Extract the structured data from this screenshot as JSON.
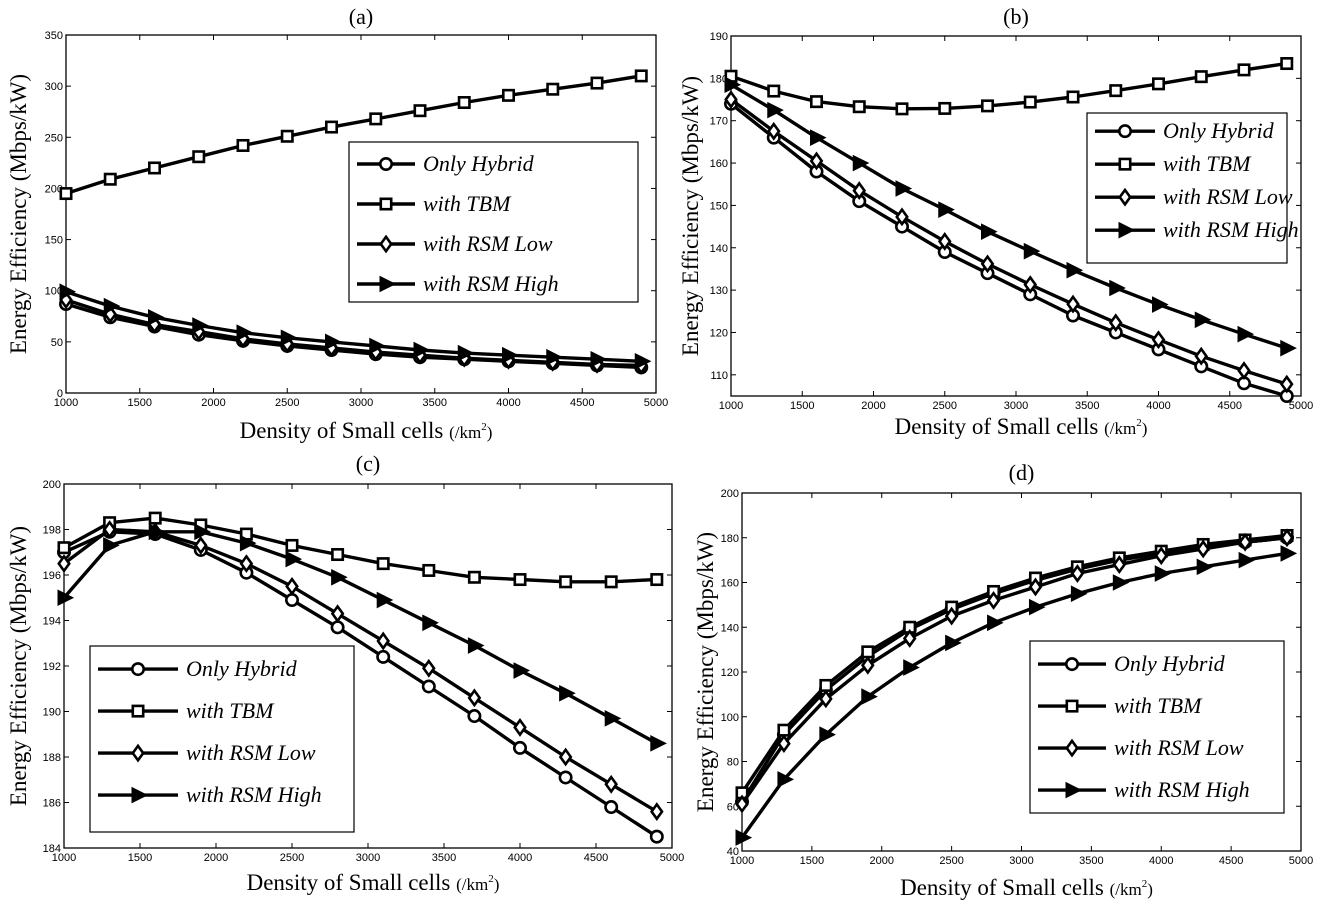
{
  "chart_data": [
    {
      "panel": "(a)",
      "type": "line",
      "xlabel": "Density of Small cells",
      "xunit": "(/km",
      "ylabel": "Energy Efficiency (Mbps/kW)",
      "xlim": [
        1000,
        5000
      ],
      "ylim": [
        0,
        350
      ],
      "xticks": [
        1000,
        1500,
        2000,
        2500,
        3000,
        3500,
        4000,
        4500,
        5000
      ],
      "yticks": [
        0,
        50,
        100,
        150,
        200,
        250,
        300,
        350
      ],
      "legend": "center-right",
      "x": [
        1000,
        1300,
        1600,
        1900,
        2200,
        2500,
        2800,
        3100,
        3400,
        3700,
        4000,
        4300,
        4600,
        4900
      ],
      "series": [
        {
          "name": "Only Hybrid",
          "marker": "circle",
          "values": [
            87,
            74,
            65,
            57,
            51,
            46,
            42,
            38,
            35,
            33,
            31,
            29,
            27,
            25
          ]
        },
        {
          "name": "with TBM",
          "marker": "square",
          "values": [
            195,
            209,
            220,
            231,
            242,
            251,
            260,
            268,
            276,
            284,
            291,
            297,
            303,
            310
          ]
        },
        {
          "name": "with RSM Low",
          "marker": "diamond",
          "values": [
            91,
            77,
            67,
            60,
            53,
            48,
            44,
            40,
            37,
            34,
            32,
            30,
            28,
            27
          ]
        },
        {
          "name": "with RSM High",
          "marker": "triangle-right",
          "values": [
            99,
            85,
            74,
            66,
            59,
            54,
            50,
            46,
            42,
            39,
            37,
            35,
            33,
            31
          ]
        }
      ]
    },
    {
      "panel": "(b)",
      "type": "line",
      "xlabel": "Density of Small cells",
      "xunit": "(/km",
      "ylabel": "Energy Efficiency (Mbps/kW)",
      "xlim": [
        1000,
        5000
      ],
      "ylim": [
        105,
        190
      ],
      "xticks": [
        1000,
        1500,
        2000,
        2500,
        3000,
        3500,
        4000,
        4500,
        5000
      ],
      "yticks": [
        110,
        120,
        130,
        140,
        150,
        160,
        170,
        180,
        190
      ],
      "legend": "right",
      "x": [
        1000,
        1300,
        1600,
        1900,
        2200,
        2500,
        2800,
        3100,
        3400,
        3700,
        4000,
        4300,
        4600,
        4900
      ],
      "series": [
        {
          "name": "Only Hybrid",
          "marker": "circle",
          "values": [
            174,
            166,
            158,
            151,
            145,
            139,
            134,
            129,
            124,
            120,
            116,
            112,
            108,
            105
          ]
        },
        {
          "name": "with TBM",
          "marker": "square",
          "values": [
            180.5,
            177,
            174.5,
            173.3,
            172.8,
            172.9,
            173.5,
            174.4,
            175.6,
            177.1,
            178.7,
            180.4,
            182,
            183.5
          ]
        },
        {
          "name": "with RSM Low",
          "marker": "diamond",
          "values": [
            175,
            167.5,
            160.5,
            153.5,
            147.3,
            141.5,
            136.2,
            131.3,
            126.7,
            122.3,
            118.3,
            114.4,
            111,
            107.8
          ]
        },
        {
          "name": "with RSM High",
          "marker": "triangle-right",
          "values": [
            178.5,
            172.5,
            166,
            160,
            154,
            149,
            143.8,
            139.2,
            134.7,
            130.5,
            126.6,
            123,
            119.6,
            116.3
          ]
        }
      ]
    },
    {
      "panel": "(c)",
      "type": "line",
      "xlabel": "Density of Small cells",
      "xunit": "(/km",
      "ylabel": "Energy Efficiency (Mbps/kW)",
      "xlim": [
        1000,
        5000
      ],
      "ylim": [
        184,
        200
      ],
      "xticks": [
        1000,
        1500,
        2000,
        2500,
        3000,
        3500,
        4000,
        4500,
        5000
      ],
      "yticks": [
        184,
        186,
        188,
        190,
        192,
        194,
        196,
        198,
        200
      ],
      "legend": "lower-left",
      "x": [
        1000,
        1300,
        1600,
        1900,
        2200,
        2500,
        2800,
        3100,
        3400,
        3700,
        4000,
        4300,
        4600,
        4900
      ],
      "series": [
        {
          "name": "Only Hybrid",
          "marker": "circle",
          "values": [
            197,
            197.9,
            197.8,
            197.1,
            196.1,
            194.9,
            193.7,
            192.4,
            191.1,
            189.8,
            188.4,
            187.1,
            185.8,
            184.5
          ]
        },
        {
          "name": "with TBM",
          "marker": "square",
          "values": [
            197.2,
            198.3,
            198.5,
            198.2,
            197.8,
            197.3,
            196.9,
            196.5,
            196.2,
            195.9,
            195.8,
            195.7,
            195.7,
            195.8
          ]
        },
        {
          "name": "with RSM Low",
          "marker": "diamond",
          "values": [
            196.5,
            198,
            197.9,
            197.3,
            196.5,
            195.5,
            194.3,
            193.1,
            191.9,
            190.6,
            189.3,
            188,
            186.8,
            185.6
          ]
        },
        {
          "name": "with RSM High",
          "marker": "triangle-right",
          "values": [
            195,
            197.3,
            197.9,
            197.9,
            197.4,
            196.7,
            195.9,
            194.9,
            193.9,
            192.9,
            191.8,
            190.8,
            189.7,
            188.6
          ]
        }
      ]
    },
    {
      "panel": "(d)",
      "type": "line",
      "xlabel": "Density of Small cells",
      "xunit": "(/km",
      "ylabel": "Energy Efficiency (Mbps/kW)",
      "xlim": [
        1000,
        5000
      ],
      "ylim": [
        40,
        200
      ],
      "xticks": [
        1000,
        1500,
        2000,
        2500,
        3000,
        3500,
        4000,
        4500,
        5000
      ],
      "yticks": [
        40,
        60,
        80,
        100,
        120,
        140,
        160,
        180,
        200
      ],
      "legend": "lower-right",
      "x": [
        1000,
        1300,
        1600,
        1900,
        2200,
        2500,
        2800,
        3100,
        3400,
        3700,
        4000,
        4300,
        4600,
        4900
      ],
      "series": [
        {
          "name": "Only Hybrid",
          "marker": "circle",
          "values": [
            62,
            92,
            112,
            127,
            139,
            148,
            155,
            161,
            166,
            170,
            173,
            176,
            178,
            180
          ]
        },
        {
          "name": "with TBM",
          "marker": "square",
          "values": [
            66,
            94,
            114,
            129,
            140,
            149,
            156,
            162,
            167,
            171,
            174,
            177,
            179,
            181
          ]
        },
        {
          "name": "with RSM Low",
          "marker": "diamond",
          "values": [
            61,
            88,
            108,
            123,
            135,
            145,
            152,
            158,
            164,
            168,
            172,
            175,
            178,
            180
          ]
        },
        {
          "name": "with RSM High",
          "marker": "triangle-right",
          "values": [
            46,
            72,
            92,
            109,
            122,
            133,
            142,
            149,
            155,
            160,
            164,
            167,
            170,
            173
          ]
        }
      ]
    }
  ]
}
